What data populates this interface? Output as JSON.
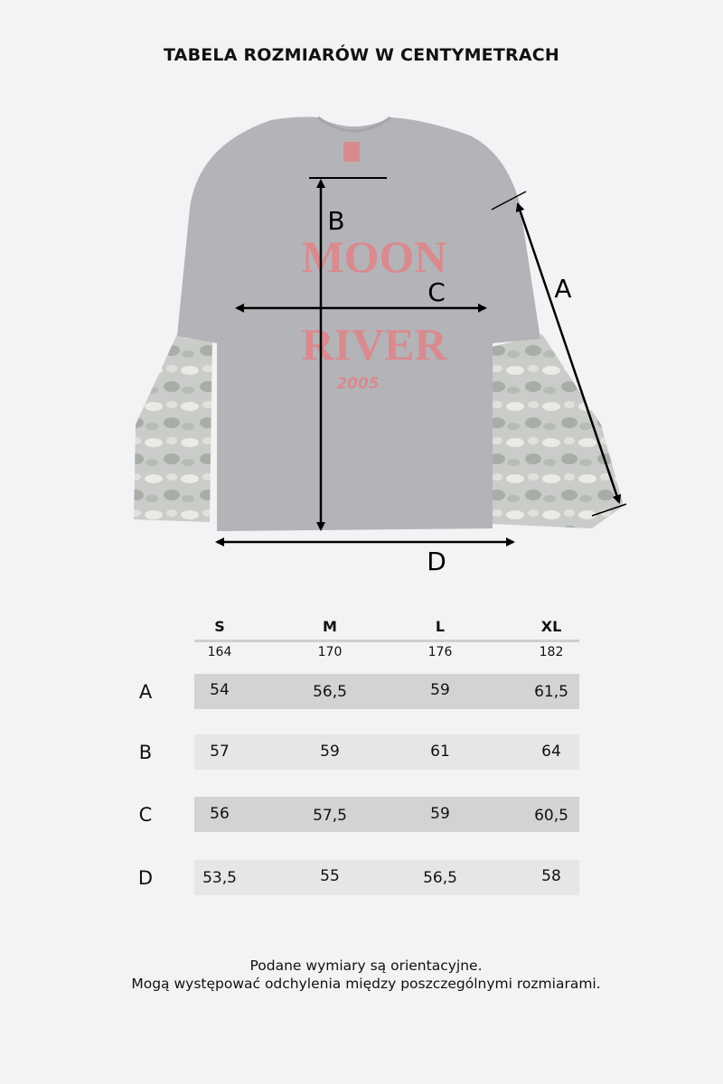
{
  "title": "TABELA ROZMIARÓW W CENTYMETRACH",
  "diagram": {
    "garment_print": [
      "MOON",
      "RIVER",
      "2005"
    ],
    "labels": {
      "A": "A",
      "B": "B",
      "C": "C",
      "D": "D"
    },
    "colors": {
      "body": "#b4b4b8",
      "print": "#d98a8f",
      "arrow": "#000000"
    }
  },
  "table": {
    "sizes": [
      "S",
      "M",
      "L",
      "XL"
    ],
    "heights": [
      "164",
      "170",
      "176",
      "182"
    ],
    "rows": [
      {
        "label": "A",
        "values": [
          "54",
          "56,5",
          "59",
          "61,5"
        ]
      },
      {
        "label": "B",
        "values": [
          "57",
          "59",
          "61",
          "64"
        ]
      },
      {
        "label": "C",
        "values": [
          "56",
          "57,5",
          "59",
          "60,5"
        ]
      },
      {
        "label": "D",
        "values": [
          "53,5",
          "55",
          "56,5",
          "58"
        ]
      }
    ],
    "colors": {
      "dark_row": "#d3d3d3",
      "light_row": "#e6e6e6"
    }
  },
  "footer": {
    "line1": "Podane wymiary są orientacyjne.",
    "line2": "Mogą występować odchylenia między poszczególnymi rozmiarami."
  }
}
